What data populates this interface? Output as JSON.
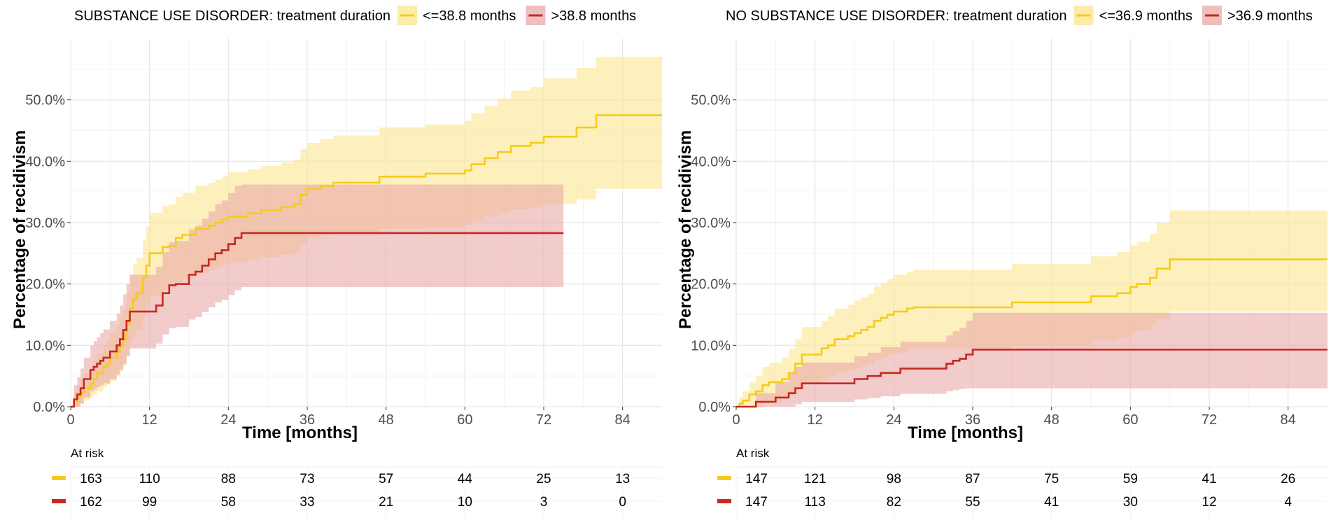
{
  "chart_data": [
    {
      "type": "line",
      "subtype": "step-with-confidence-band",
      "title": "SUBSTANCE USE DISORDER: treatment duration",
      "xlabel": "Time [months]",
      "ylabel": "Percentage of recidivism",
      "xlim": [
        0,
        90
      ],
      "ylim": [
        0,
        0.6
      ],
      "xticks": [
        0,
        12,
        24,
        36,
        48,
        60,
        72,
        84
      ],
      "xtick_labels": [
        "0",
        "12",
        "24",
        "36",
        "48",
        "60",
        "72",
        "84"
      ],
      "yticks": [
        0,
        0.1,
        0.2,
        0.3,
        0.4,
        0.5
      ],
      "ytick_labels": [
        "0.0%",
        "10.0%",
        "20.0%",
        "30.0%",
        "40.0%",
        "50.0%"
      ],
      "grid": true,
      "legend_position": "top",
      "series": [
        {
          "name": "<=38.8 months",
          "color": "#F5CC1A",
          "band_color": "#FBE68F",
          "x": [
            0,
            0.5,
            1,
            1.5,
            2,
            3,
            3.5,
            4,
            5,
            5.5,
            6,
            7,
            7.5,
            8,
            8.5,
            9,
            9.5,
            10,
            11,
            11.5,
            12,
            13,
            14,
            15,
            16,
            17,
            18,
            19,
            21,
            22,
            23,
            24,
            26,
            27,
            28,
            29,
            30,
            32,
            33,
            34,
            35,
            36,
            38,
            40,
            47,
            54,
            60,
            61,
            63,
            65,
            67,
            70,
            72,
            77,
            80,
            90
          ],
          "values": [
            0,
            0.008,
            0.015,
            0.022,
            0.03,
            0.037,
            0.045,
            0.055,
            0.065,
            0.07,
            0.08,
            0.09,
            0.1,
            0.11,
            0.135,
            0.16,
            0.175,
            0.185,
            0.21,
            0.23,
            0.25,
            0.25,
            0.26,
            0.262,
            0.275,
            0.28,
            0.28,
            0.29,
            0.295,
            0.3,
            0.305,
            0.31,
            0.31,
            0.315,
            0.315,
            0.32,
            0.32,
            0.325,
            0.325,
            0.33,
            0.345,
            0.355,
            0.36,
            0.365,
            0.375,
            0.38,
            0.385,
            0.395,
            0.405,
            0.415,
            0.425,
            0.43,
            0.44,
            0.455,
            0.475,
            0.475
          ],
          "lower": [
            0,
            0,
            0,
            0.005,
            0.01,
            0.015,
            0.02,
            0.025,
            0.032,
            0.036,
            0.042,
            0.05,
            0.058,
            0.066,
            0.085,
            0.105,
            0.118,
            0.125,
            0.147,
            0.163,
            0.18,
            0.18,
            0.19,
            0.192,
            0.203,
            0.21,
            0.21,
            0.218,
            0.222,
            0.226,
            0.231,
            0.235,
            0.235,
            0.24,
            0.24,
            0.244,
            0.244,
            0.248,
            0.248,
            0.253,
            0.266,
            0.275,
            0.28,
            0.283,
            0.29,
            0.293,
            0.296,
            0.303,
            0.31,
            0.316,
            0.322,
            0.325,
            0.33,
            0.338,
            0.355,
            0.355
          ],
          "upper": [
            0,
            0.024,
            0.035,
            0.045,
            0.055,
            0.065,
            0.075,
            0.088,
            0.1,
            0.107,
            0.12,
            0.132,
            0.145,
            0.157,
            0.185,
            0.215,
            0.232,
            0.243,
            0.272,
            0.293,
            0.316,
            0.316,
            0.327,
            0.33,
            0.342,
            0.348,
            0.348,
            0.36,
            0.365,
            0.37,
            0.375,
            0.382,
            0.382,
            0.387,
            0.387,
            0.392,
            0.392,
            0.398,
            0.398,
            0.403,
            0.42,
            0.43,
            0.436,
            0.442,
            0.455,
            0.46,
            0.466,
            0.478,
            0.49,
            0.502,
            0.515,
            0.521,
            0.535,
            0.552,
            0.57,
            0.57
          ]
        },
        {
          "name": ">38.8 months",
          "color": "#C8281E",
          "band_color": "#E9A9A8",
          "x": [
            0,
            0.5,
            1,
            1.5,
            2,
            3,
            3.5,
            4,
            4.5,
            5,
            6,
            7,
            7.5,
            8,
            8.5,
            9,
            10,
            13,
            14,
            15,
            16,
            17,
            18,
            19,
            20,
            21,
            22,
            23,
            24,
            25,
            26,
            75
          ],
          "values": [
            0,
            0.012,
            0.02,
            0.03,
            0.045,
            0.06,
            0.065,
            0.07,
            0.075,
            0.08,
            0.09,
            0.1,
            0.11,
            0.125,
            0.14,
            0.155,
            0.155,
            0.165,
            0.185,
            0.198,
            0.2,
            0.2,
            0.215,
            0.22,
            0.23,
            0.24,
            0.25,
            0.255,
            0.265,
            0.275,
            0.283,
            0.283
          ],
          "lower": [
            0,
            0,
            0,
            0.005,
            0.015,
            0.025,
            0.028,
            0.032,
            0.035,
            0.038,
            0.045,
            0.052,
            0.06,
            0.07,
            0.082,
            0.095,
            0.095,
            0.103,
            0.118,
            0.128,
            0.13,
            0.13,
            0.142,
            0.146,
            0.154,
            0.162,
            0.17,
            0.174,
            0.182,
            0.19,
            0.195,
            0.195
          ],
          "upper": [
            0,
            0.035,
            0.048,
            0.062,
            0.08,
            0.1,
            0.107,
            0.113,
            0.12,
            0.126,
            0.14,
            0.152,
            0.165,
            0.183,
            0.2,
            0.215,
            0.215,
            0.228,
            0.252,
            0.268,
            0.27,
            0.27,
            0.289,
            0.295,
            0.306,
            0.318,
            0.33,
            0.336,
            0.348,
            0.36,
            0.362,
            0.362
          ]
        }
      ],
      "risk_table": {
        "label": "At risk",
        "times": [
          0,
          12,
          24,
          36,
          48,
          60,
          72,
          84
        ],
        "rows": [
          {
            "series": "<=38.8 months",
            "color": "#F5CC1A",
            "counts": [
              "163",
              "110",
              "88",
              "73",
              "57",
              "44",
              "25",
              "13"
            ]
          },
          {
            "series": ">38.8 months",
            "color": "#C8281E",
            "counts": [
              "162",
              "99",
              "58",
              "33",
              "21",
              "10",
              "3",
              "0"
            ]
          }
        ]
      }
    },
    {
      "type": "line",
      "subtype": "step-with-confidence-band",
      "title": "NO SUBSTANCE USE DISORDER: treatment duration",
      "xlabel": "Time [months]",
      "ylabel": "Percentage of recidivism",
      "xlim": [
        0,
        90
      ],
      "ylim": [
        0,
        0.6
      ],
      "xticks": [
        0,
        12,
        24,
        36,
        48,
        60,
        72,
        84
      ],
      "xtick_labels": [
        "0",
        "12",
        "24",
        "36",
        "48",
        "60",
        "72",
        "84"
      ],
      "yticks": [
        0,
        0.1,
        0.2,
        0.3,
        0.4,
        0.5
      ],
      "ytick_labels": [
        "0.0%",
        "10.0%",
        "20.0%",
        "30.0%",
        "40.0%",
        "50.0%"
      ],
      "grid": true,
      "legend_position": "top",
      "series": [
        {
          "name": "<=36.9 months",
          "color": "#F5CC1A",
          "band_color": "#FBE68F",
          "x": [
            0,
            0.5,
            1,
            2,
            3,
            4,
            5,
            7,
            8,
            9,
            10,
            13,
            14,
            15,
            17,
            18,
            19,
            20,
            21,
            22,
            23,
            24,
            26,
            27,
            42,
            54,
            58,
            60,
            61,
            63,
            64,
            66,
            90
          ],
          "values": [
            0,
            0.005,
            0.01,
            0.02,
            0.025,
            0.035,
            0.04,
            0.045,
            0.055,
            0.07,
            0.085,
            0.095,
            0.1,
            0.11,
            0.115,
            0.12,
            0.125,
            0.13,
            0.14,
            0.145,
            0.15,
            0.155,
            0.16,
            0.162,
            0.17,
            0.18,
            0.185,
            0.195,
            0.2,
            0.21,
            0.225,
            0.24,
            0.24
          ],
          "lower": [
            0,
            0,
            0,
            0,
            0,
            0.005,
            0.008,
            0.012,
            0.018,
            0.028,
            0.038,
            0.045,
            0.048,
            0.055,
            0.058,
            0.062,
            0.066,
            0.07,
            0.076,
            0.08,
            0.085,
            0.088,
            0.093,
            0.095,
            0.1,
            0.108,
            0.112,
            0.12,
            0.124,
            0.132,
            0.143,
            0.155,
            0.155
          ],
          "upper": [
            0,
            0.015,
            0.025,
            0.04,
            0.05,
            0.065,
            0.072,
            0.08,
            0.095,
            0.11,
            0.13,
            0.14,
            0.148,
            0.16,
            0.166,
            0.173,
            0.178,
            0.184,
            0.196,
            0.202,
            0.208,
            0.215,
            0.22,
            0.223,
            0.233,
            0.245,
            0.252,
            0.263,
            0.269,
            0.282,
            0.3,
            0.32,
            0.32
          ]
        },
        {
          "name": ">36.9 months",
          "color": "#C8281E",
          "band_color": "#E9A9A8",
          "x": [
            0,
            3,
            6,
            8,
            9,
            10,
            18,
            20,
            21,
            22,
            25,
            27,
            32,
            33,
            34,
            35,
            36,
            90
          ],
          "values": [
            0,
            0.008,
            0.015,
            0.022,
            0.03,
            0.038,
            0.045,
            0.05,
            0.05,
            0.055,
            0.062,
            0.062,
            0.07,
            0.075,
            0.078,
            0.085,
            0.093,
            0.093
          ],
          "lower": [
            0,
            0,
            0,
            0,
            0.004,
            0.008,
            0.012,
            0.014,
            0.014,
            0.017,
            0.021,
            0.021,
            0.025,
            0.027,
            0.029,
            0.03,
            0.03,
            0.03
          ],
          "upper": [
            0,
            0.022,
            0.04,
            0.055,
            0.065,
            0.072,
            0.082,
            0.088,
            0.088,
            0.097,
            0.106,
            0.106,
            0.116,
            0.123,
            0.128,
            0.14,
            0.153,
            0.153
          ]
        }
      ],
      "risk_table": {
        "label": "At risk",
        "times": [
          0,
          12,
          24,
          36,
          48,
          60,
          72,
          84
        ],
        "rows": [
          {
            "series": "<=36.9 months",
            "color": "#F5CC1A",
            "counts": [
              "147",
              "121",
              "98",
              "87",
              "75",
              "59",
              "41",
              "26"
            ]
          },
          {
            "series": ">36.9 months",
            "color": "#C8281E",
            "counts": [
              "147",
              "113",
              "82",
              "55",
              "41",
              "30",
              "12",
              "4"
            ]
          }
        ]
      }
    }
  ]
}
